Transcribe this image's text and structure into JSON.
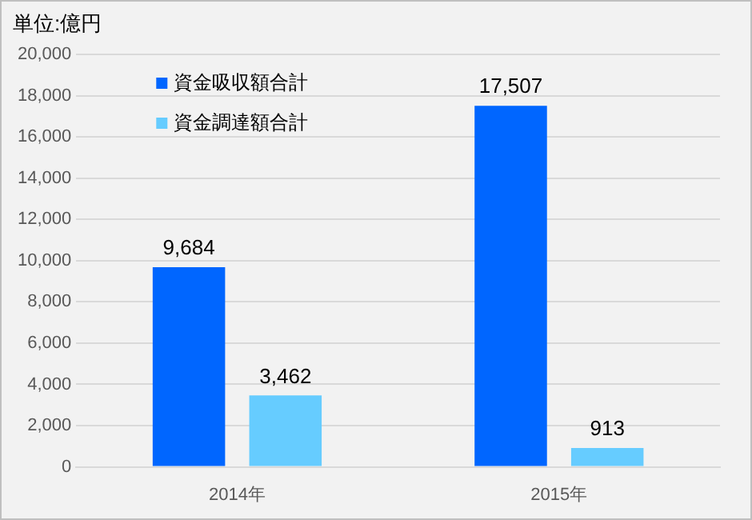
{
  "chart_data": {
    "type": "bar",
    "ylabel": "単位:億円",
    "categories": [
      "2014年",
      "2015年"
    ],
    "series": [
      {
        "name": "資金吸収額合計",
        "color": "#0066ff",
        "values": [
          9684,
          17507
        ],
        "value_labels": [
          "9,684",
          "17,507"
        ]
      },
      {
        "name": "資金調達額合計",
        "color": "#66ccff",
        "values": [
          3462,
          913
        ],
        "value_labels": [
          "3,462",
          "913"
        ]
      }
    ],
    "ylim": [
      0,
      20000
    ],
    "yticks": [
      {
        "value": 0,
        "label": "0"
      },
      {
        "value": 2000,
        "label": "2,000"
      },
      {
        "value": 4000,
        "label": "4,000"
      },
      {
        "value": 6000,
        "label": "6,000"
      },
      {
        "value": 8000,
        "label": "8,000"
      },
      {
        "value": 10000,
        "label": "10,000"
      },
      {
        "value": 12000,
        "label": "12,000"
      },
      {
        "value": 14000,
        "label": "14,000"
      },
      {
        "value": 16000,
        "label": "16,000"
      },
      {
        "value": 18000,
        "label": "18,000"
      },
      {
        "value": 20000,
        "label": "20,000"
      }
    ],
    "grid": "y",
    "legend": "top left"
  }
}
